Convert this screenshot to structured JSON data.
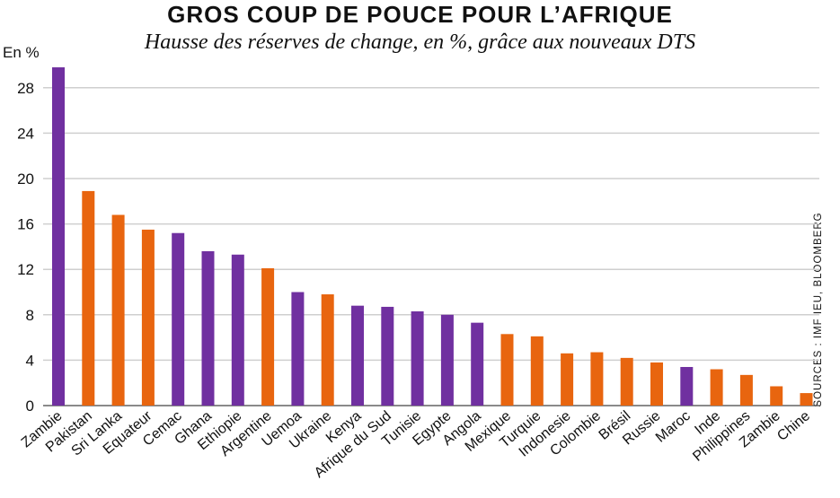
{
  "title": "GROS COUP DE POUCE POUR L’AFRIQUE",
  "subtitle": "Hausse des réserves de change, en %, grâce aux nouveaux DTS",
  "source": "SOURCES : IMF IEU, BLOOMBERG",
  "colors": {
    "africa": "#7030A0",
    "other": "#E8650F",
    "grid": "#cfcfcf"
  },
  "chart_data": {
    "type": "bar",
    "ylabel": "En %",
    "ylim": [
      0,
      30
    ],
    "yticks": [
      0,
      4,
      8,
      12,
      16,
      20,
      24,
      28
    ],
    "grid": true,
    "categories": [
      "Zambie",
      "Pakistan",
      "Sri Lanka",
      "Equateur",
      "Cemac",
      "Ghana",
      "Ethiopie",
      "Argentine",
      "Uemoa",
      "Ukraine",
      "Kenya",
      "Afrique du Sud",
      "Tunisie",
      "Egypte",
      "Angola",
      "Mexique",
      "Turquie",
      "Indonesie",
      "Colombie",
      "Brésil",
      "Russie",
      "Maroc",
      "Inde",
      "Philippines",
      "Zambie",
      "Chine"
    ],
    "values": [
      29.8,
      18.9,
      16.8,
      15.5,
      15.2,
      13.6,
      13.3,
      12.1,
      10.0,
      9.8,
      8.8,
      8.7,
      8.3,
      8.0,
      7.3,
      6.3,
      6.1,
      4.6,
      4.7,
      4.2,
      3.8,
      3.4,
      3.2,
      2.7,
      1.7,
      1.1
    ],
    "africa": [
      true,
      false,
      false,
      false,
      true,
      true,
      true,
      false,
      true,
      false,
      true,
      true,
      true,
      true,
      true,
      false,
      false,
      false,
      false,
      false,
      false,
      true,
      false,
      false,
      false,
      false
    ]
  }
}
